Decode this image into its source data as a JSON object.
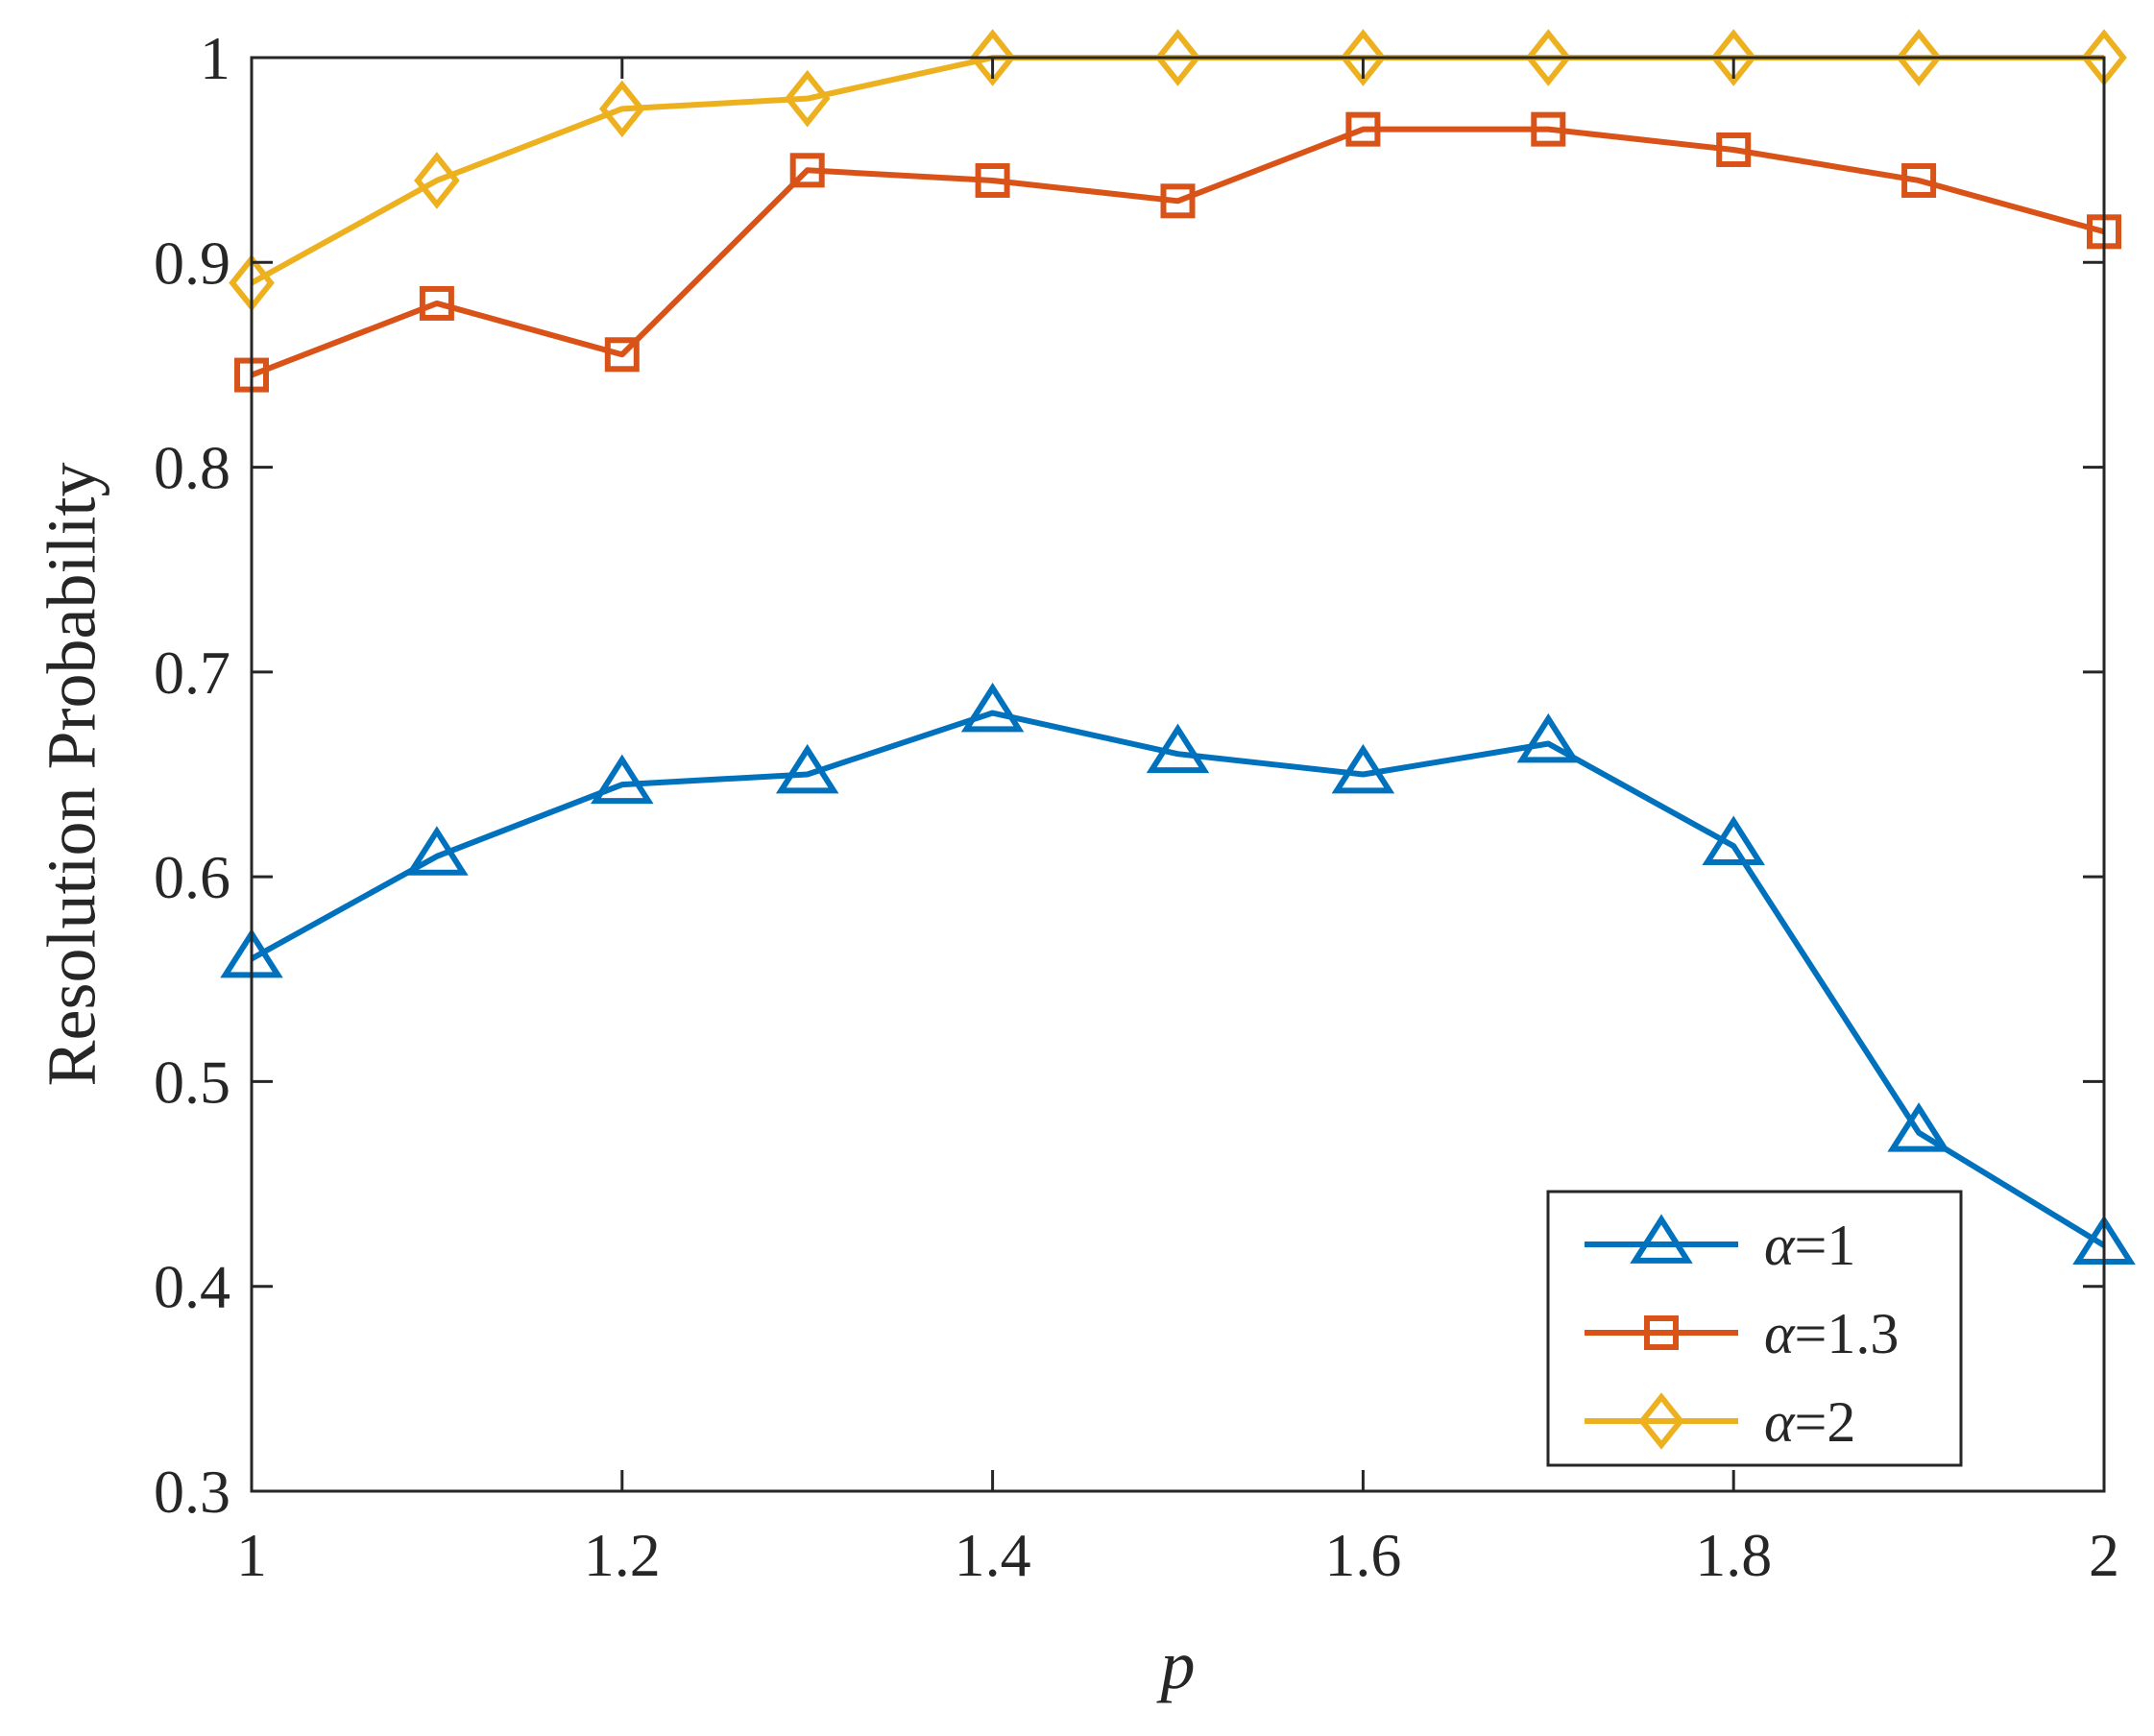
{
  "chart_data": {
    "type": "line",
    "xlabel": "p",
    "ylabel": "Resolution Probability",
    "xlim": [
      1,
      2
    ],
    "ylim": [
      0.3,
      1
    ],
    "xticks": [
      "1",
      "1.2",
      "1.4",
      "1.6",
      "1.8",
      "2"
    ],
    "yticks": [
      "0.3",
      "0.4",
      "0.5",
      "0.6",
      "0.7",
      "0.8",
      "0.9",
      "1"
    ],
    "x": [
      1,
      1.1,
      1.2,
      1.3,
      1.4,
      1.5,
      1.6,
      1.7,
      1.8,
      1.9,
      2
    ],
    "grid": false,
    "legend_position": "bottom-right",
    "series": [
      {
        "name": "α=1",
        "color": "#0072BD",
        "marker": "triangle",
        "values": [
          0.56,
          0.61,
          0.645,
          0.65,
          0.68,
          0.66,
          0.65,
          0.665,
          0.615,
          0.475,
          0.42
        ]
      },
      {
        "name": "α=1.3",
        "color": "#D95319",
        "marker": "square",
        "values": [
          0.845,
          0.88,
          0.855,
          0.945,
          0.94,
          0.93,
          0.965,
          0.965,
          0.955,
          0.94,
          0.915
        ]
      },
      {
        "name": "α=2",
        "color": "#EDB120",
        "marker": "diamond",
        "values": [
          0.89,
          0.94,
          0.975,
          0.98,
          1,
          1,
          1,
          1,
          1,
          1,
          1
        ]
      }
    ]
  }
}
